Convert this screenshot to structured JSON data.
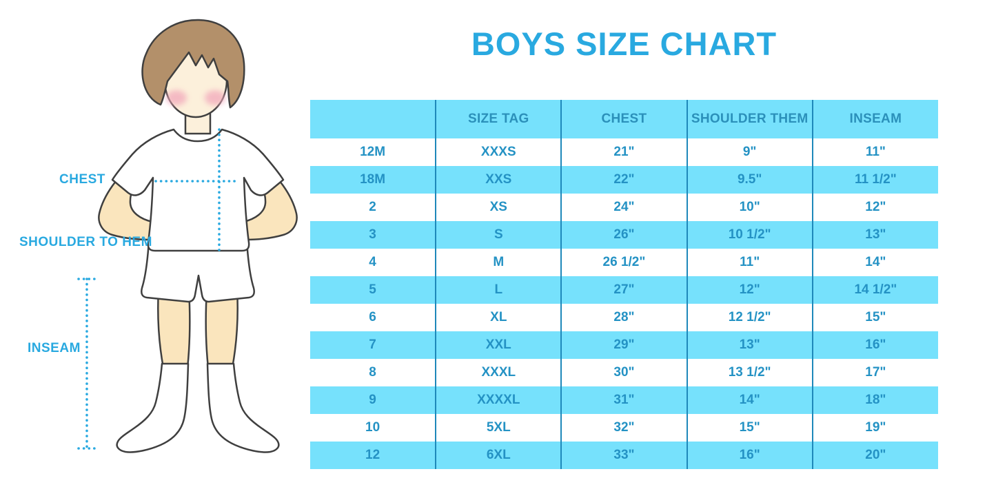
{
  "title": "BOYS SIZE CHART",
  "figure": {
    "chest_label": "CHEST",
    "shoulder_to_hem_label": "SHOULDER TO HEM",
    "inseam_label": "INSEAM"
  },
  "colors": {
    "accent_blue": "#29A9E0",
    "row_fill_blue": "#76E1FC",
    "table_text_blue": "#2492C4",
    "column_divider_blue": "#1E88BA"
  },
  "chart_data": {
    "type": "table",
    "title": "BOYS SIZE CHART",
    "columns": [
      "",
      "SIZE TAG",
      "CHEST",
      "SHOULDER THEM",
      "INSEAM"
    ],
    "rows": [
      [
        "12M",
        "XXXS",
        "21\"",
        "9\"",
        "11\""
      ],
      [
        "18M",
        "XXS",
        "22\"",
        "9.5\"",
        "11 1/2\""
      ],
      [
        "2",
        "XS",
        "24\"",
        "10\"",
        "12\""
      ],
      [
        "3",
        "S",
        "26\"",
        "10 1/2\"",
        "13\""
      ],
      [
        "4",
        "M",
        "26 1/2\"",
        "11\"",
        "14\""
      ],
      [
        "5",
        "L",
        "27\"",
        "12\"",
        "14 1/2\""
      ],
      [
        "6",
        "XL",
        "28\"",
        "12 1/2\"",
        "15\""
      ],
      [
        "7",
        "XXL",
        "29\"",
        "13\"",
        "16\""
      ],
      [
        "8",
        "XXXL",
        "30\"",
        "13 1/2\"",
        "17\""
      ],
      [
        "9",
        "XXXXL",
        "31\"",
        "14\"",
        "18\""
      ],
      [
        "10",
        "5XL",
        "32\"",
        "15\"",
        "19\""
      ],
      [
        "12",
        "6XL",
        "33\"",
        "16\"",
        "20\""
      ]
    ],
    "row_background_pattern": "alternating white / light-blue, header light-blue",
    "legend_position": "none",
    "grid": "vertical column dividers only"
  }
}
